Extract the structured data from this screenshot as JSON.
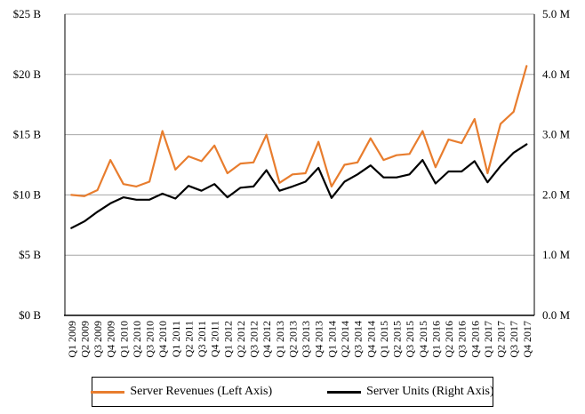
{
  "chart_data": {
    "type": "line",
    "title": "",
    "categories": [
      "Q1 2009",
      "Q2 2009",
      "Q3 2009",
      "Q4 2009",
      "Q1 2010",
      "Q2 2010",
      "Q3 2010",
      "Q4 2010",
      "Q1 2011",
      "Q2 2011",
      "Q3 2011",
      "Q4 2011",
      "Q1 2012",
      "Q2 2012",
      "Q3 2012",
      "Q4 2012",
      "Q1 2013",
      "Q2 2013",
      "Q3 2013",
      "Q4 2013",
      "Q1 2014",
      "Q2 2014",
      "Q3 2014",
      "Q4 2014",
      "Q1 2015",
      "Q2 2015",
      "Q3 2015",
      "Q4 2015",
      "Q1 2016",
      "Q2 2016",
      "Q3 2016",
      "Q4 2016",
      "Q1 2017",
      "Q2 2017",
      "Q3 2017",
      "Q4 2017"
    ],
    "series": [
      {
        "name": "Server Revenues (Left Axis)",
        "axis": "left",
        "color": "#E87D2E",
        "unit": "$B",
        "values": [
          10.0,
          9.9,
          10.4,
          12.9,
          10.9,
          10.7,
          11.1,
          15.3,
          12.1,
          13.2,
          12.8,
          14.1,
          11.8,
          12.6,
          12.7,
          15.0,
          11.0,
          11.7,
          11.8,
          14.4,
          10.7,
          12.5,
          12.7,
          14.7,
          12.9,
          13.3,
          13.4,
          15.3,
          12.3,
          14.6,
          14.3,
          16.3,
          11.8,
          15.9,
          16.9,
          20.7
        ]
      },
      {
        "name": "Server Units (Right Axis)",
        "axis": "right",
        "color": "#000000",
        "unit": "M",
        "values": [
          1.45,
          1.56,
          1.72,
          1.86,
          1.96,
          1.92,
          1.92,
          2.02,
          1.94,
          2.15,
          2.07,
          2.18,
          1.96,
          2.12,
          2.14,
          2.41,
          2.07,
          2.14,
          2.22,
          2.45,
          1.95,
          2.22,
          2.34,
          2.49,
          2.29,
          2.29,
          2.34,
          2.58,
          2.19,
          2.39,
          2.39,
          2.56,
          2.21,
          2.48,
          2.7,
          2.84
        ]
      }
    ],
    "left_axis": {
      "tick_labels": [
        "$0 B",
        "$5 B",
        "$10 B",
        "$15 B",
        "$20 B",
        "$25 B"
      ],
      "min": 0,
      "max": 25,
      "step": 5
    },
    "right_axis": {
      "tick_labels": [
        "0.0 M",
        "1.0 M",
        "2.0 M",
        "3.0 M",
        "4.0 M",
        "5.0 M"
      ],
      "min": 0,
      "max": 5,
      "step": 1
    },
    "grid": true,
    "legend_position": "bottom",
    "gridline_color": "#A6A6A6",
    "axis_color": "#000000",
    "label_color": "#000000"
  }
}
